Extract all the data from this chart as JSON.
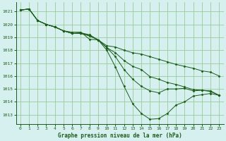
{
  "title": "Graphe pression niveau de la mer (hPa)",
  "background_color": "#d6f0f0",
  "grid_color": "#99cc99",
  "line_color": "#1a5c1a",
  "marker_color": "#1a5c1a",
  "xlim": [
    -0.5,
    23.5
  ],
  "ylim": [
    1012.3,
    1021.7
  ],
  "yticks": [
    1013,
    1014,
    1015,
    1016,
    1017,
    1018,
    1019,
    1020,
    1021
  ],
  "xticks": [
    0,
    1,
    2,
    3,
    4,
    5,
    6,
    7,
    8,
    9,
    10,
    11,
    12,
    13,
    14,
    15,
    16,
    17,
    18,
    19,
    20,
    21,
    22,
    23
  ],
  "series": [
    [
      1021.1,
      1021.2,
      1020.3,
      1020.0,
      1019.8,
      1019.5,
      1019.3,
      1019.3,
      1019.1,
      1018.8,
      1018.0,
      1016.7,
      1015.2,
      1013.85,
      1013.1,
      1012.65,
      1012.7,
      1013.1,
      1013.75,
      1014.0,
      1014.45,
      1014.55,
      1014.65,
      1014.5
    ],
    [
      1021.1,
      1021.2,
      1020.3,
      1020.0,
      1019.8,
      1019.5,
      1019.3,
      1019.3,
      1019.15,
      1018.8,
      1018.2,
      1017.5,
      1016.5,
      1015.75,
      1015.2,
      1014.85,
      1014.7,
      1015.0,
      1015.0,
      1015.05,
      1014.85,
      1014.9,
      1014.85,
      1014.5
    ],
    [
      1021.1,
      1021.2,
      1020.3,
      1020.0,
      1019.8,
      1019.5,
      1019.3,
      1019.35,
      1019.2,
      1018.8,
      1018.2,
      1017.8,
      1017.2,
      1016.75,
      1016.5,
      1015.95,
      1015.75,
      1015.5,
      1015.35,
      1015.15,
      1014.95,
      1014.9,
      1014.8,
      1014.5
    ],
    [
      1021.1,
      1021.2,
      1020.3,
      1020.0,
      1019.8,
      1019.5,
      1019.4,
      1019.4,
      1018.85,
      1018.8,
      1018.35,
      1018.25,
      1018.0,
      1017.8,
      1017.7,
      1017.5,
      1017.3,
      1017.1,
      1016.9,
      1016.75,
      1016.6,
      1016.4,
      1016.3,
      1016.0
    ]
  ]
}
